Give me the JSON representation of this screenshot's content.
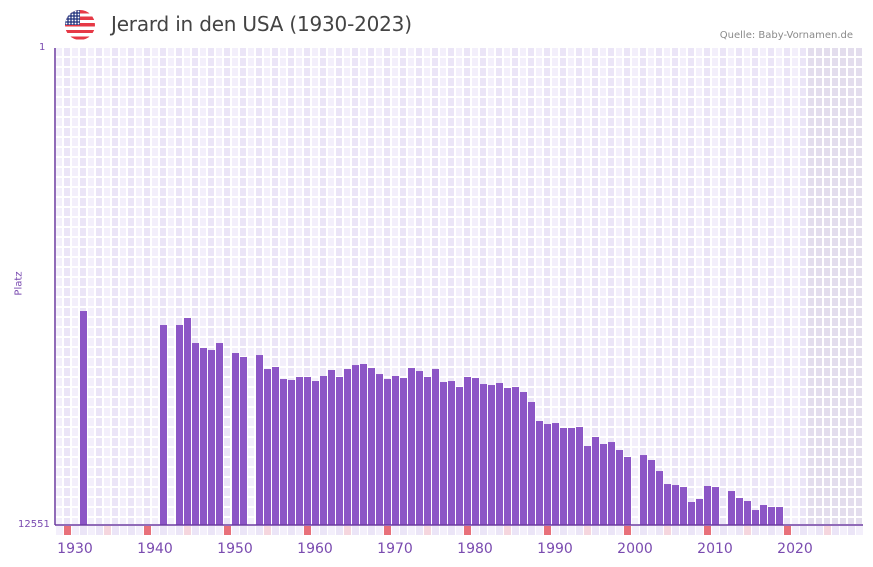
{
  "header": {
    "title": "Jerard in den USA (1930-2023)",
    "source": "Quelle: Baby-Vornamen.de",
    "flag_icon": "us-flag-icon"
  },
  "colors": {
    "bar": "#8c56c6",
    "axis": "#6b3aa0",
    "grid_a": "#f3effb",
    "grid_b": "#ebe5f7",
    "future_shade": "#e3dded",
    "decade_marker": "#e8707a",
    "half_decade_marker": "#f5d6de",
    "label": "#7a4bb0"
  },
  "chart_data": {
    "type": "bar",
    "title": "Jerard in den USA (1930-2023)",
    "xlabel": "",
    "ylabel": "Platz",
    "y_axis_inverted": true,
    "ylim": [
      12551,
      1
    ],
    "xlim": [
      1928,
      2028
    ],
    "x_ticks": [
      1930,
      1940,
      1950,
      1960,
      1970,
      1980,
      1990,
      2000,
      2010,
      2020
    ],
    "y_ticks": [
      1,
      12551
    ],
    "grid": true,
    "legend": null,
    "x": [
      1931,
      1941,
      1943,
      1944,
      1945,
      1946,
      1947,
      1948,
      1950,
      1951,
      1953,
      1954,
      1955,
      1956,
      1957,
      1958,
      1959,
      1960,
      1961,
      1962,
      1963,
      1964,
      1965,
      1966,
      1967,
      1968,
      1969,
      1970,
      1971,
      1972,
      1973,
      1974,
      1975,
      1976,
      1977,
      1978,
      1979,
      1980,
      1981,
      1982,
      1983,
      1984,
      1985,
      1986,
      1987,
      1988,
      1989,
      1990,
      1991,
      1992,
      1993,
      1994,
      1995,
      1996,
      1997,
      1998,
      1999,
      2001,
      2002,
      2003,
      2004,
      2005,
      2006,
      2007,
      2008,
      2009,
      2010,
      2012,
      2013,
      2014,
      2015,
      2016,
      2017,
      2018
    ],
    "values": [
      6921,
      7289,
      7289,
      7105,
      7763,
      7894,
      7947,
      7763,
      8026,
      8131,
      8079,
      8447,
      8394,
      8710,
      8736,
      8657,
      8657,
      8763,
      8631,
      8473,
      8657,
      8447,
      8342,
      8315,
      8421,
      8579,
      8710,
      8631,
      8684,
      8421,
      8500,
      8657,
      8447,
      8789,
      8763,
      8921,
      8657,
      8684,
      8842,
      8868,
      8815,
      8947,
      8921,
      9052,
      9315,
      9815,
      9894,
      9868,
      9999,
      9999,
      9973,
      10473,
      10236,
      10420,
      10368,
      10578,
      10762,
      10710,
      10841,
      11131,
      11473,
      11499,
      11552,
      11946,
      11867,
      11525,
      11552,
      11657,
      11841,
      11920,
      12157,
      12025,
      12078,
      12078
    ]
  }
}
